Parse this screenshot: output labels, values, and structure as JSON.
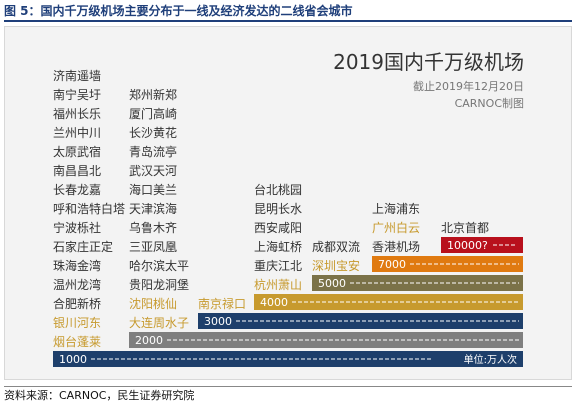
{
  "figure_caption": "图 5：国内千万级机场主要分布于一线及经济发达的二线省会城市",
  "source": "资料来源：CARNOC，民生证券研究院",
  "colors": {
    "normal_city": "#333333",
    "highlight_city": "#c79a2e",
    "dash": "#ffffff"
  },
  "chart_data": {
    "type": "bar",
    "title": "2019国内千万级机场",
    "subtitle": "截止2019年12月20日",
    "credit": "CARNOC制图",
    "unit_label": "单位:万人次",
    "tiers": [
      {
        "label": "1000",
        "value": 1000,
        "color": "#1e3f6b"
      },
      {
        "label": "2000",
        "value": 2000,
        "color": "#7f7f7f"
      },
      {
        "label": "3000",
        "value": 3000,
        "color": "#1e3f6b"
      },
      {
        "label": "4000",
        "value": 4000,
        "color": "#c79a2e"
      },
      {
        "label": "5000",
        "value": 5000,
        "color": "#7b7248"
      },
      {
        "label": "7000",
        "value": 7000,
        "color": "#e07a10"
      },
      {
        "label": "10000?",
        "value": 10000,
        "color": "#b8101c"
      }
    ],
    "columns": [
      {
        "tier": "1000",
        "cities": [
          {
            "name": "济南遥墙"
          },
          {
            "name": "南宁吴圩"
          },
          {
            "name": "福州长乐"
          },
          {
            "name": "兰州中川"
          },
          {
            "name": "太原武宿"
          },
          {
            "name": "南昌昌北"
          },
          {
            "name": "长春龙嘉"
          },
          {
            "name": "呼和浩特白塔"
          },
          {
            "name": "宁波栎社"
          },
          {
            "name": "石家庄正定"
          },
          {
            "name": "珠海金湾"
          },
          {
            "name": "温州龙湾"
          },
          {
            "name": "合肥新桥"
          },
          {
            "name": "银川河东",
            "highlight": true
          },
          {
            "name": "烟台蓬莱",
            "highlight": true
          }
        ]
      },
      {
        "tier": "2000",
        "cities": [
          {
            "name": "郑州新郑"
          },
          {
            "name": "厦门高崎"
          },
          {
            "name": "长沙黄花"
          },
          {
            "name": "青岛流亭"
          },
          {
            "name": "武汉天河"
          },
          {
            "name": "海口美兰"
          },
          {
            "name": "天津滨海"
          },
          {
            "name": "乌鲁木齐"
          },
          {
            "name": "三亚凤凰"
          },
          {
            "name": "哈尔滨太平"
          },
          {
            "name": "贵阳龙洞堡"
          },
          {
            "name": "沈阳桃仙",
            "highlight": true
          },
          {
            "name": "大连周水子",
            "highlight": true
          }
        ]
      },
      {
        "tier": "3000",
        "cities": [
          {
            "name": "南京禄口",
            "highlight": true
          }
        ]
      },
      {
        "tier": "4000",
        "cities": [
          {
            "name": "台北桃园"
          },
          {
            "name": "昆明长水"
          },
          {
            "name": "西安咸阳"
          },
          {
            "name": "上海虹桥"
          },
          {
            "name": "重庆江北"
          },
          {
            "name": "杭州萧山",
            "highlight": true
          }
        ]
      },
      {
        "tier": "5000",
        "cities": [
          {
            "name": "成都双流"
          },
          {
            "name": "深圳宝安",
            "highlight": true
          }
        ]
      },
      {
        "tier": "7000",
        "cities": [
          {
            "name": "上海浦东"
          },
          {
            "name": "广州白云",
            "highlight": true
          },
          {
            "name": "香港机场"
          }
        ]
      },
      {
        "tier": "10000?",
        "cities": [
          {
            "name": "北京首都"
          }
        ]
      }
    ]
  }
}
